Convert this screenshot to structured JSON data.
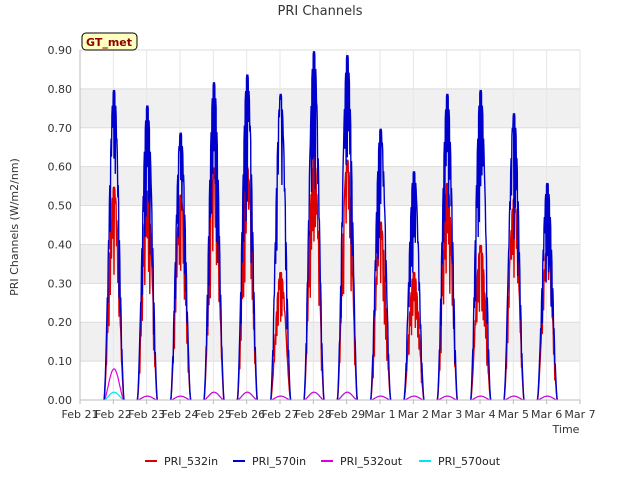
{
  "chart_data": {
    "type": "line",
    "title": "PRI Channels",
    "xlabel": "Time",
    "ylabel": "PRI Channels (W/m2/nm)",
    "ylim": [
      0,
      0.9
    ],
    "xlim": [
      0,
      15
    ],
    "yticks": [
      0.0,
      0.1,
      0.2,
      0.3,
      0.4,
      0.5,
      0.6,
      0.7,
      0.8,
      0.9
    ],
    "ytick_labels": [
      "0.00",
      "0.10",
      "0.20",
      "0.30",
      "0.40",
      "0.50",
      "0.60",
      "0.70",
      "0.80",
      "0.90"
    ],
    "xtick_labels": [
      "Feb 21",
      "Feb 22",
      "Feb 23",
      "Feb 24",
      "Feb 25",
      "Feb 26",
      "Feb 27",
      "Feb 28",
      "Feb 29",
      "Mar 1",
      "Mar 2",
      "Mar 3",
      "Mar 4",
      "Mar 5",
      "Mar 6",
      "Mar 7"
    ],
    "grid": true,
    "banded_background": true,
    "legend_position": "bottom",
    "badge": "GT_met",
    "series": [
      {
        "name": "PRI_532in",
        "color": "#dd0000",
        "daily_peaks": [
          0.55,
          0.54,
          0.53,
          0.6,
          0.6,
          0.33,
          0.63,
          0.62,
          0.46,
          0.33,
          0.56,
          0.4,
          0.52,
          0.4
        ]
      },
      {
        "name": "PRI_570in",
        "color": "#0000cc",
        "daily_peaks": [
          0.8,
          0.76,
          0.69,
          0.82,
          0.84,
          0.79,
          0.9,
          0.89,
          0.7,
          0.59,
          0.79,
          0.8,
          0.74,
          0.56
        ]
      },
      {
        "name": "PRI_532out",
        "color": "#dd00dd",
        "daily_peaks": [
          0.08,
          0.01,
          0.01,
          0.02,
          0.02,
          0.01,
          0.02,
          0.02,
          0.01,
          0.01,
          0.01,
          0.01,
          0.01,
          0.01
        ]
      },
      {
        "name": "PRI_570out",
        "color": "#00e5ee",
        "daily_peaks": [
          0.02,
          0.01,
          0.01,
          0.02,
          0.02,
          0.01,
          0.02,
          0.02,
          0.01,
          0.01,
          0.01,
          0.01,
          0.01,
          0.01
        ]
      }
    ]
  }
}
